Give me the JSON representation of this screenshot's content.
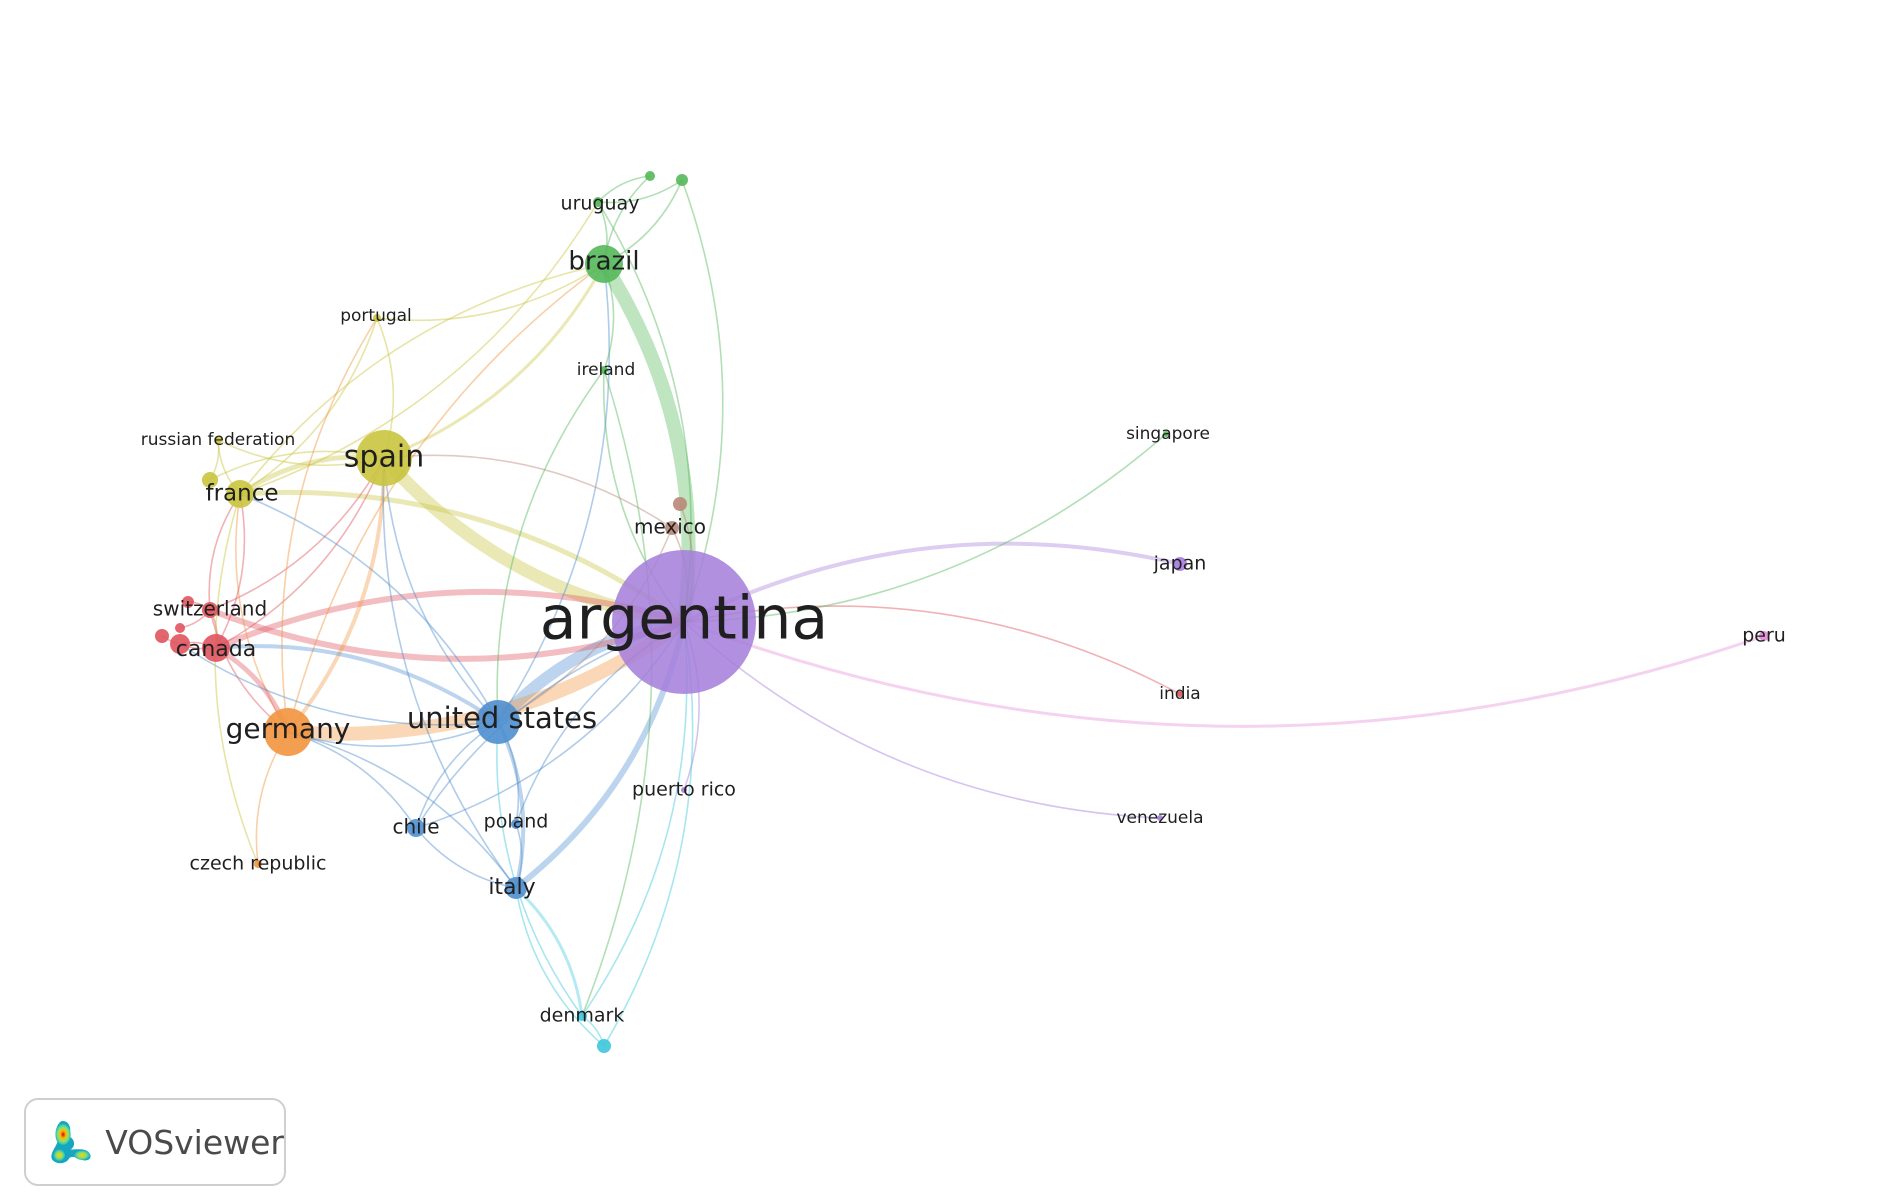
{
  "brand": {
    "name": "VOSviewer",
    "icon": "vosviewer-density-icon"
  },
  "clusters": {
    "purple": "#a57ddb",
    "green": "#55b85a",
    "yellow": "#c9c43f",
    "blue": "#4f8fcf",
    "red": "#e0545e",
    "orange": "#f2953f",
    "cyan": "#3ec7dc",
    "brown": "#b98778",
    "pink": "#e48ad8"
  },
  "nodes": [
    {
      "id": "argentina",
      "label": "argentina",
      "cluster": "purple"
    },
    {
      "id": "brazil",
      "label": "brazil",
      "cluster": "green"
    },
    {
      "id": "uruguay",
      "label": "uruguay",
      "cluster": "green"
    },
    {
      "id": "ireland",
      "label": "ireland",
      "cluster": "green"
    },
    {
      "id": "green_a",
      "label": "",
      "cluster": "green"
    },
    {
      "id": "green_b",
      "label": "",
      "cluster": "green"
    },
    {
      "id": "singapore",
      "label": "singapore",
      "cluster": "green"
    },
    {
      "id": "spain",
      "label": "spain",
      "cluster": "yellow"
    },
    {
      "id": "france",
      "label": "france",
      "cluster": "yellow"
    },
    {
      "id": "portugal",
      "label": "portugal",
      "cluster": "yellow"
    },
    {
      "id": "russian_federation",
      "label": "russian federation",
      "cluster": "yellow"
    },
    {
      "id": "yellow_a",
      "label": "",
      "cluster": "yellow"
    },
    {
      "id": "united_states",
      "label": "united states",
      "cluster": "blue"
    },
    {
      "id": "chile",
      "label": "chile",
      "cluster": "blue"
    },
    {
      "id": "poland",
      "label": "poland",
      "cluster": "blue"
    },
    {
      "id": "italy",
      "label": "italy",
      "cluster": "blue"
    },
    {
      "id": "germany",
      "label": "germany",
      "cluster": "orange"
    },
    {
      "id": "czech_republic",
      "label": "czech republic",
      "cluster": "orange"
    },
    {
      "id": "canada",
      "label": "canada",
      "cluster": "red"
    },
    {
      "id": "switzerland",
      "label": "switzerland",
      "cluster": "red"
    },
    {
      "id": "red_a",
      "label": "",
      "cluster": "red"
    },
    {
      "id": "red_b",
      "label": "",
      "cluster": "red"
    },
    {
      "id": "red_c",
      "label": "",
      "cluster": "red"
    },
    {
      "id": "red_d",
      "label": "",
      "cluster": "red"
    },
    {
      "id": "india",
      "label": "india",
      "cluster": "red"
    },
    {
      "id": "mexico",
      "label": "mexico",
      "cluster": "brown"
    },
    {
      "id": "brown_a",
      "label": "",
      "cluster": "brown"
    },
    {
      "id": "denmark",
      "label": "denmark",
      "cluster": "cyan"
    },
    {
      "id": "cyan_a",
      "label": "",
      "cluster": "cyan"
    },
    {
      "id": "puerto_rico",
      "label": "puerto rico",
      "cluster": "purple"
    },
    {
      "id": "japan",
      "label": "japan",
      "cluster": "purple"
    },
    {
      "id": "venezuela",
      "label": "venezuela",
      "cluster": "purple"
    },
    {
      "id": "peru",
      "label": "peru",
      "cluster": "pink"
    }
  ],
  "links": [
    [
      "argentina",
      "brazil"
    ],
    [
      "argentina",
      "spain"
    ],
    [
      "argentina",
      "united_states"
    ],
    [
      "argentina",
      "germany"
    ],
    [
      "argentina",
      "canada"
    ],
    [
      "argentina",
      "switzerland"
    ],
    [
      "argentina",
      "france"
    ],
    [
      "argentina",
      "italy"
    ],
    [
      "argentina",
      "mexico"
    ],
    [
      "argentina",
      "japan"
    ],
    [
      "argentina",
      "peru"
    ],
    [
      "argentina",
      "india"
    ],
    [
      "argentina",
      "venezuela"
    ],
    [
      "argentina",
      "denmark"
    ],
    [
      "argentina",
      "uruguay"
    ],
    [
      "argentina",
      "chile"
    ],
    [
      "argentina",
      "poland"
    ],
    [
      "argentina",
      "puerto_rico"
    ],
    [
      "argentina",
      "green_b"
    ],
    [
      "argentina",
      "ireland"
    ],
    [
      "argentina",
      "singapore"
    ],
    [
      "argentina",
      "cyan_a"
    ],
    [
      "argentina",
      "brown_a"
    ],
    [
      "brazil",
      "spain"
    ],
    [
      "brazil",
      "uruguay"
    ],
    [
      "brazil",
      "green_a"
    ],
    [
      "brazil",
      "green_b"
    ],
    [
      "brazil",
      "portugal"
    ],
    [
      "brazil",
      "germany"
    ],
    [
      "brazil",
      "united_states"
    ],
    [
      "brazil",
      "france"
    ],
    [
      "uruguay",
      "green_a"
    ],
    [
      "uruguay",
      "green_b"
    ],
    [
      "uruguay",
      "france"
    ],
    [
      "spain",
      "france"
    ],
    [
      "spain",
      "germany"
    ],
    [
      "spain",
      "portugal"
    ],
    [
      "spain",
      "russian_federation"
    ],
    [
      "spain",
      "united_states"
    ],
    [
      "spain",
      "canada"
    ],
    [
      "spain",
      "italy"
    ],
    [
      "spain",
      "mexico"
    ],
    [
      "spain",
      "yellow_a"
    ],
    [
      "spain",
      "switzerland"
    ],
    [
      "france",
      "germany"
    ],
    [
      "france",
      "canada"
    ],
    [
      "france",
      "switzerland"
    ],
    [
      "france",
      "russian_federation"
    ],
    [
      "france",
      "portugal"
    ],
    [
      "france",
      "united_states"
    ],
    [
      "germany",
      "canada"
    ],
    [
      "germany",
      "switzerland"
    ],
    [
      "germany",
      "united_states"
    ],
    [
      "germany",
      "italy"
    ],
    [
      "germany",
      "czech_republic"
    ],
    [
      "germany",
      "chile"
    ],
    [
      "canada",
      "switzerland"
    ],
    [
      "canada",
      "united_states"
    ],
    [
      "canada",
      "red_a"
    ],
    [
      "canada",
      "red_b"
    ],
    [
      "switzerland",
      "red_c"
    ],
    [
      "switzerland",
      "red_d"
    ],
    [
      "red_a",
      "united_states"
    ],
    [
      "united_states",
      "italy"
    ],
    [
      "united_states",
      "chile"
    ],
    [
      "united_states",
      "poland"
    ],
    [
      "united_states",
      "denmark"
    ],
    [
      "united_states",
      "ireland"
    ],
    [
      "united_states",
      "mexico"
    ],
    [
      "italy",
      "denmark"
    ],
    [
      "italy",
      "cyan_a"
    ],
    [
      "italy",
      "chile"
    ],
    [
      "italy",
      "poland"
    ],
    [
      "denmark",
      "cyan_a"
    ],
    [
      "denmark",
      "ireland"
    ],
    [
      "chile",
      "argentina"
    ],
    [
      "ireland",
      "brazil"
    ],
    [
      "russian_federation",
      "yellow_a"
    ],
    [
      "portugal",
      "germany"
    ],
    [
      "czech_republic",
      "france"
    ]
  ]
}
